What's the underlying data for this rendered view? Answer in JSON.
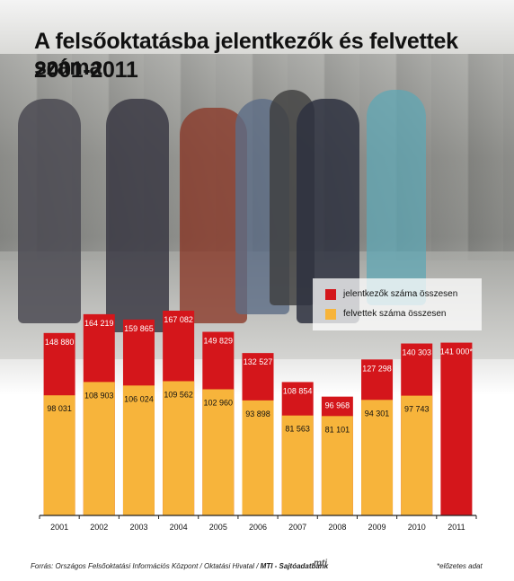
{
  "title": {
    "line1": "A felsőoktatásba jelentkezők és felvettek száma",
    "line2": "2001-2011"
  },
  "legend": {
    "applicants": "jelentkezők száma összesen",
    "admitted": "felvettek száma összesen"
  },
  "colors": {
    "applicants": "#d4161b",
    "admitted": "#f7b43b"
  },
  "chart_data": {
    "type": "bar",
    "categories": [
      "2001",
      "2002",
      "2003",
      "2004",
      "2005",
      "2006",
      "2007",
      "2008",
      "2009",
      "2010",
      "2011"
    ],
    "series": [
      {
        "name": "jelentkezők száma összesen",
        "values": [
          148880,
          164219,
          159865,
          167082,
          149829,
          132527,
          108854,
          96968,
          127298,
          140303,
          141000
        ],
        "labels": [
          "148 880",
          "164 219",
          "159 865",
          "167 082",
          "149 829",
          "132 527",
          "108 854",
          "96 968",
          "127 298",
          "140 303",
          "141 000*"
        ]
      },
      {
        "name": "felvettek száma összesen",
        "values": [
          98031,
          108903,
          106024,
          109562,
          102960,
          93898,
          81563,
          81101,
          94301,
          97743,
          null
        ],
        "labels": [
          "98 031",
          "108 903",
          "106 024",
          "109 562",
          "102 960",
          "93 898",
          "81 563",
          "81 101",
          "94 301",
          "97 743",
          ""
        ]
      }
    ],
    "ylim": [
      0,
      170000
    ],
    "legend_position": "top-right"
  },
  "source": {
    "prefix": "Forrás: Országos Felsőoktatási Információs Központ / Oktatási Hivatal / ",
    "brand": "MTI - Sajtóadatbank"
  },
  "logo_text": "mti",
  "footnote": "*előzetes adat"
}
